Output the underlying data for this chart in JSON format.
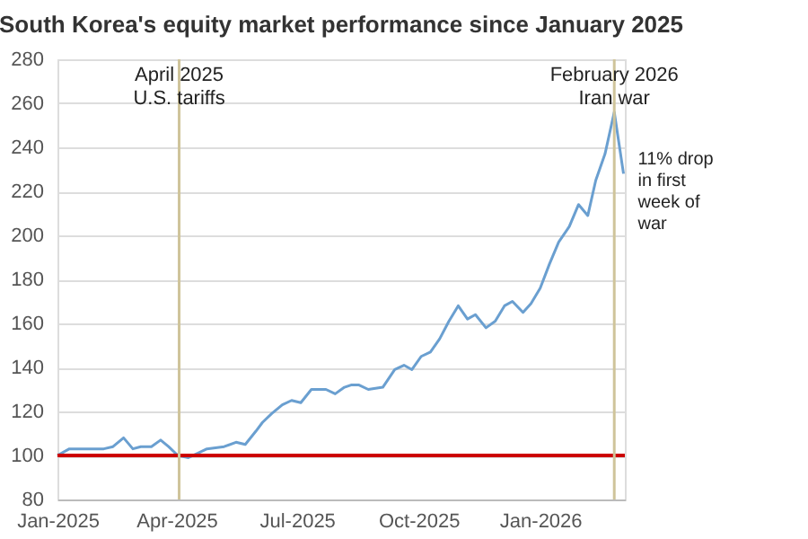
{
  "chart_data": {
    "type": "line",
    "title": "South Korea's equity market performance since January 2025",
    "x": [
      "2025-01-01",
      "2025-01-10",
      "2025-01-21",
      "2025-02-05",
      "2025-02-12",
      "2025-02-20",
      "2025-02-27",
      "2025-03-05",
      "2025-03-13",
      "2025-03-20",
      "2025-03-26",
      "2025-04-02",
      "2025-04-10",
      "2025-04-17",
      "2025-04-24",
      "2025-05-07",
      "2025-05-16",
      "2025-05-23",
      "2025-05-31",
      "2025-06-05",
      "2025-06-12",
      "2025-06-20",
      "2025-06-27",
      "2025-07-04",
      "2025-07-12",
      "2025-07-23",
      "2025-07-30",
      "2025-08-06",
      "2025-08-11",
      "2025-08-17",
      "2025-08-24",
      "2025-09-04",
      "2025-09-13",
      "2025-09-20",
      "2025-09-26",
      "2025-10-03",
      "2025-10-10",
      "2025-10-17",
      "2025-10-24",
      "2025-10-31",
      "2025-11-07",
      "2025-11-13",
      "2025-11-21",
      "2025-11-28",
      "2025-12-05",
      "2025-12-11",
      "2025-12-19",
      "2025-12-25",
      "2026-01-01",
      "2026-01-08",
      "2026-01-15",
      "2026-01-23",
      "2026-01-30",
      "2026-02-06",
      "2026-02-12",
      "2026-02-19",
      "2026-02-26",
      "2026-03-05"
    ],
    "series": [
      {
        "color": "#6a9fd0",
        "values": [
          100,
          103,
          103,
          103,
          104,
          108,
          103,
          104,
          104,
          107,
          104,
          100,
          99,
          101,
          103,
          104,
          106,
          105,
          111,
          115,
          119,
          123,
          125,
          124,
          130,
          130,
          128,
          131,
          132,
          132,
          130,
          131,
          139,
          141,
          139,
          145,
          147,
          153,
          161,
          168,
          162,
          164,
          158,
          161,
          168,
          170,
          165,
          169,
          176,
          187,
          197,
          204,
          214,
          209,
          225,
          237,
          256,
          228
        ]
      }
    ],
    "xlim": [
      "2025-01-01",
      "2026-03-06"
    ],
    "xticks": [
      {
        "value": "2025-01-01",
        "label": "Jan-2025"
      },
      {
        "value": "2025-04-01",
        "label": "Apr-2025"
      },
      {
        "value": "2025-07-01",
        "label": "Jul-2025"
      },
      {
        "value": "2025-10-01",
        "label": "Oct-2025"
      },
      {
        "value": "2026-01-01",
        "label": "Jan-2026"
      }
    ],
    "ylim": [
      80,
      280
    ],
    "yticks": [
      80,
      100,
      120,
      140,
      160,
      180,
      200,
      220,
      240,
      260,
      280
    ],
    "grid": "y",
    "marker": "none",
    "line_style": "solid",
    "ref_lines": [
      {
        "axis": "y",
        "value": 100,
        "color": "#cc0000"
      },
      {
        "axis": "x",
        "value": "2025-04-03",
        "label": "April 2025\nU.S. tariffs",
        "color": "#cfc49a"
      },
      {
        "axis": "x",
        "value": "2026-02-26",
        "label": "February 2026\nIran war",
        "color": "#cfc49a"
      }
    ],
    "annotations": [
      {
        "text": "11% drop in first week of war",
        "x": "2026-03-05",
        "y": 228
      }
    ]
  }
}
